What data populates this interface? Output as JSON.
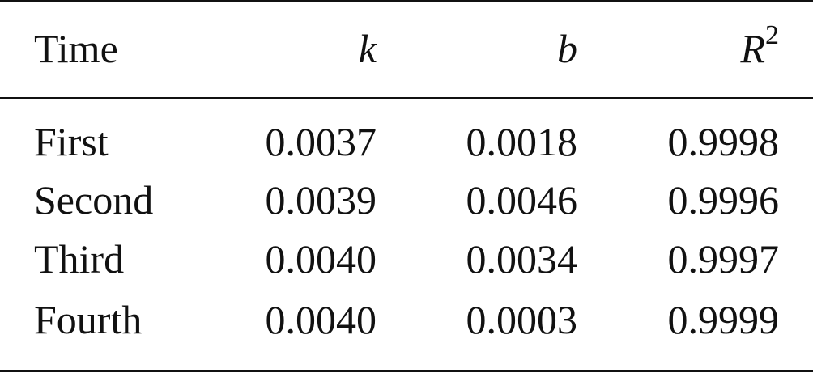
{
  "table": {
    "columns": [
      {
        "label": "Time",
        "italic": false
      },
      {
        "label": "k",
        "italic": true
      },
      {
        "label": "b",
        "italic": true
      },
      {
        "label": "R",
        "italic": true,
        "superscript": "2"
      }
    ],
    "rows": [
      [
        "First",
        "0.0037",
        "0.0018",
        "0.9998"
      ],
      [
        "Second",
        "0.0039",
        "0.0046",
        "0.9996"
      ],
      [
        "Third",
        "0.0040",
        "0.0034",
        "0.9997"
      ],
      [
        "Fourth",
        "0.0040",
        "0.0003",
        "0.9999"
      ]
    ]
  }
}
